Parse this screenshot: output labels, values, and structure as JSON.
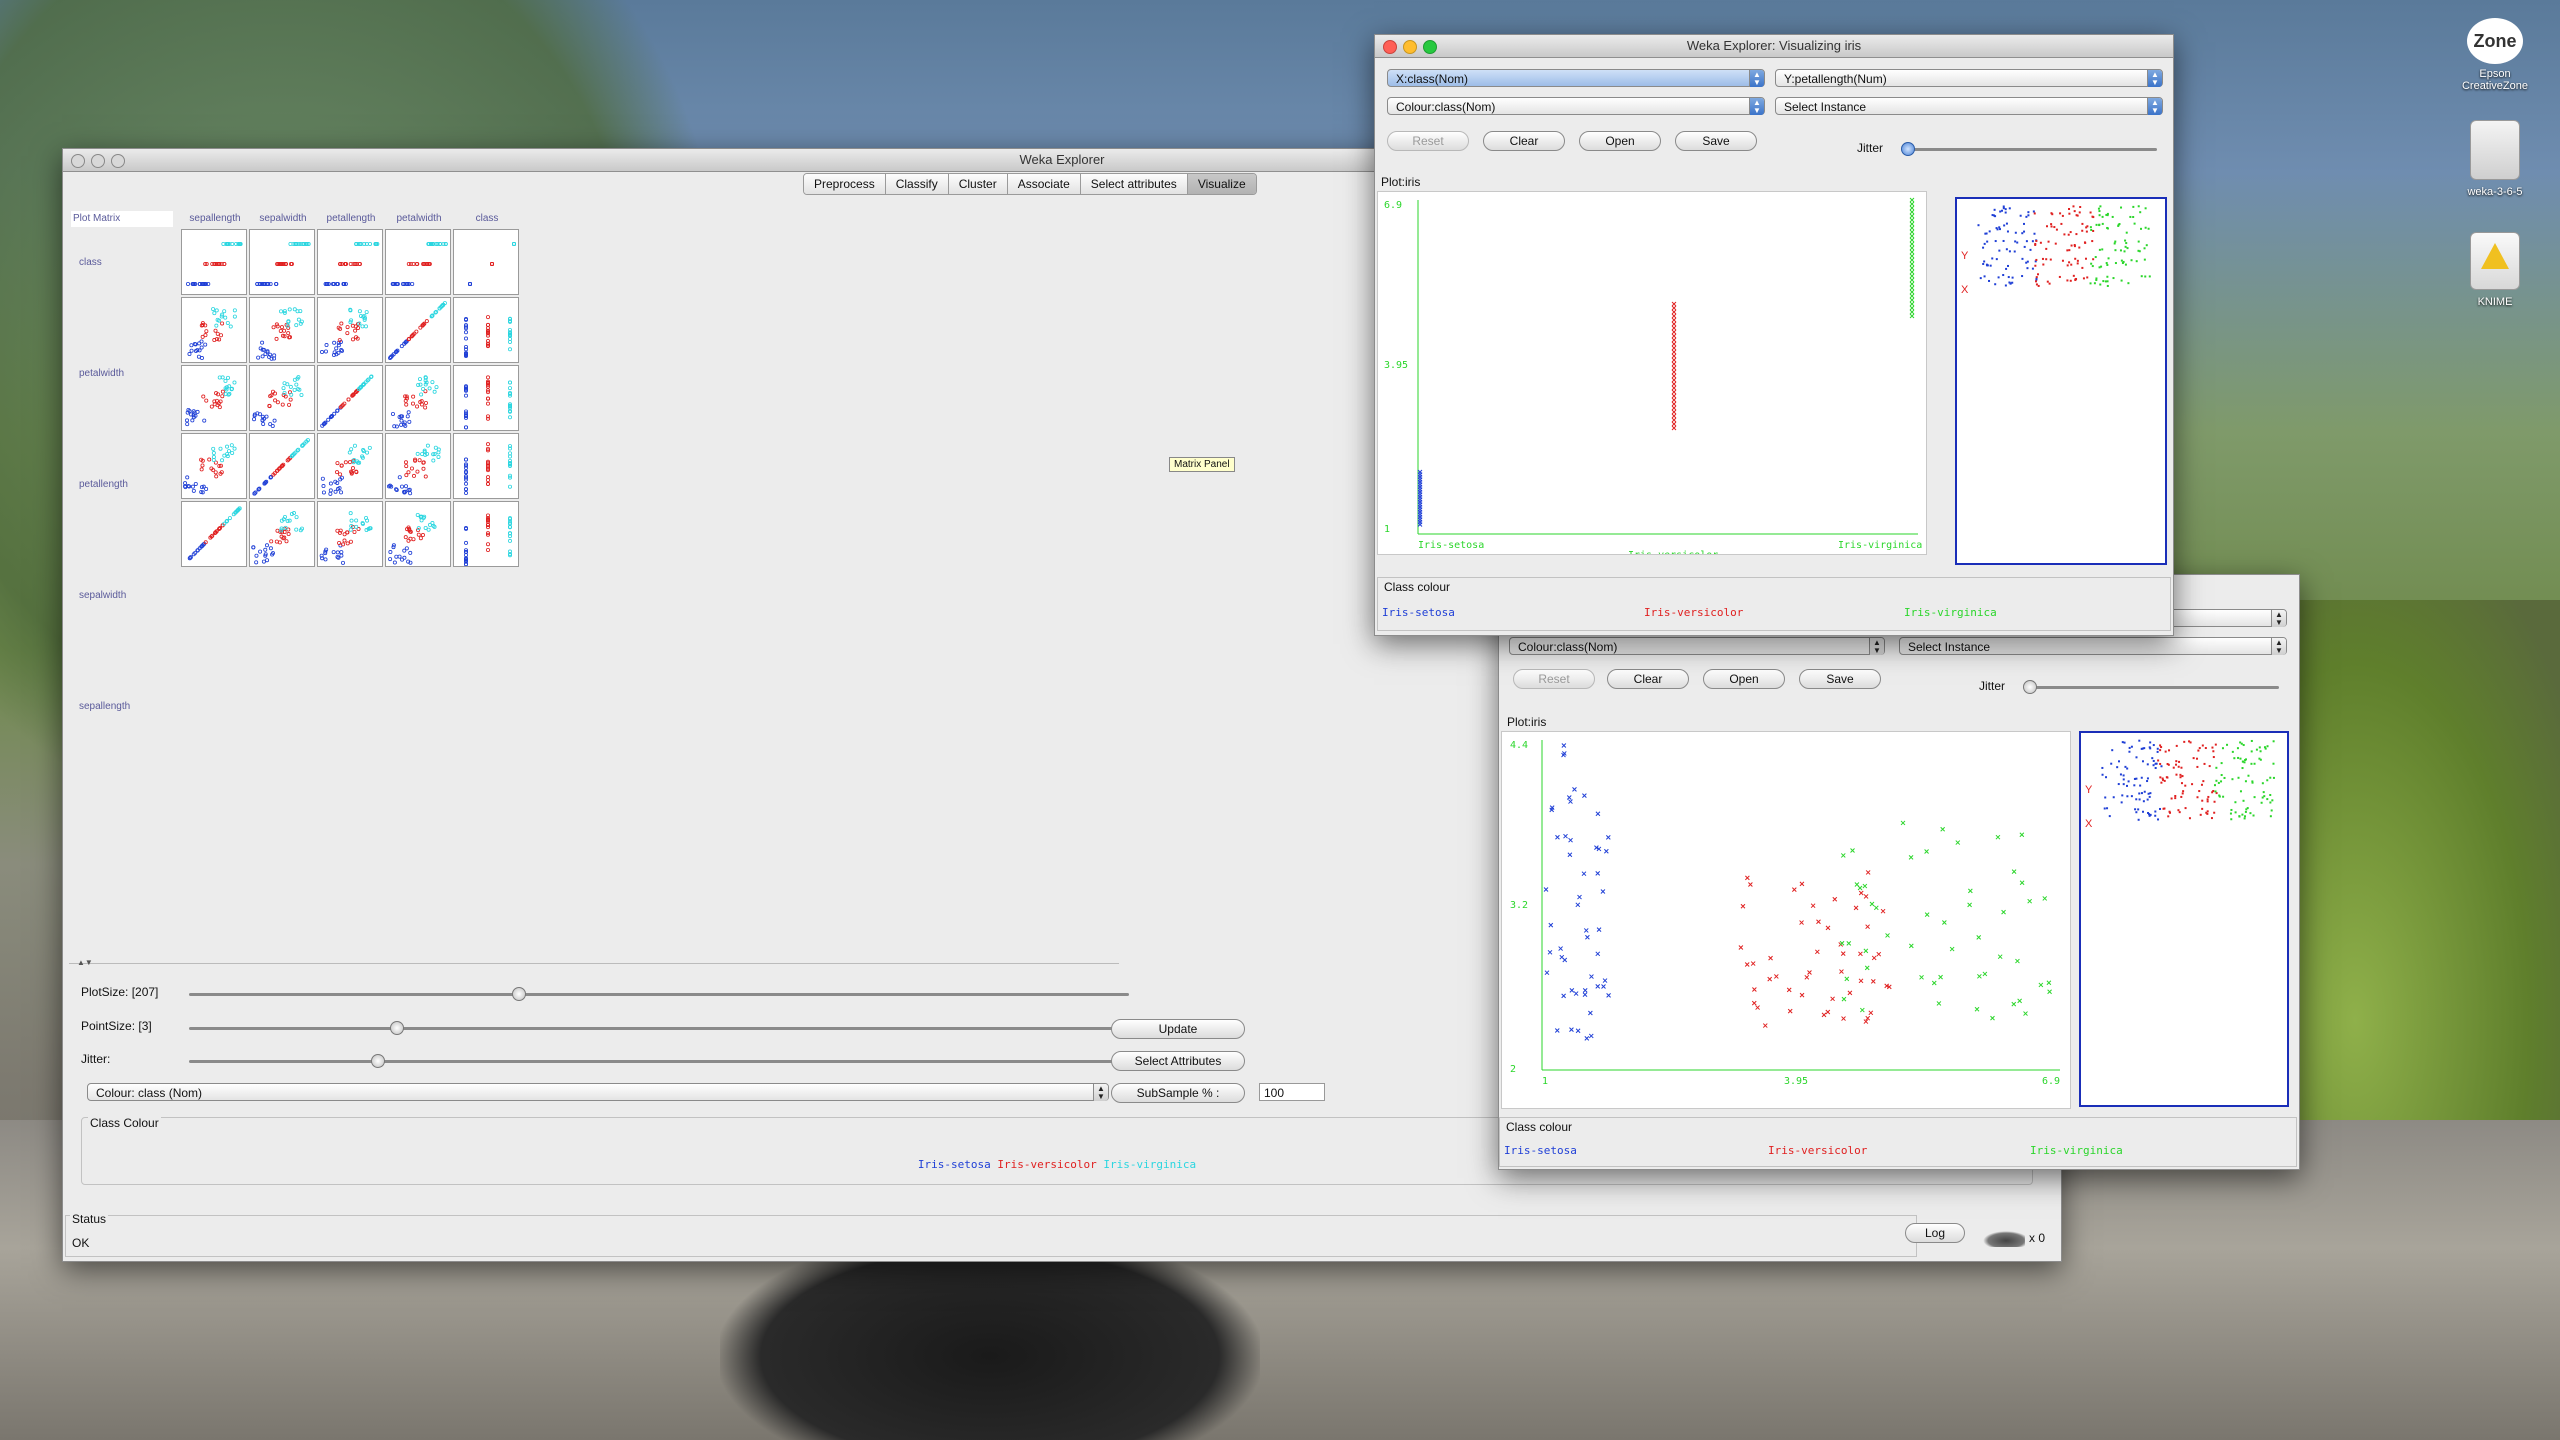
{
  "desktop": {
    "icons": [
      {
        "id": "epson",
        "label": "Epson CreativeZone",
        "badge": "Zone"
      },
      {
        "id": "weka",
        "label": "weka-3-6-5"
      },
      {
        "id": "knime",
        "label": "KNIME"
      }
    ]
  },
  "main_window": {
    "title": "Weka Explorer",
    "tabs": [
      "Preprocess",
      "Classify",
      "Cluster",
      "Associate",
      "Select attributes",
      "Visualize"
    ],
    "active_tab": "Visualize",
    "matrix_header": "Plot Matrix",
    "columns": [
      "sepallength",
      "sepalwidth",
      "petallength",
      "petalwidth",
      "class"
    ],
    "rows": [
      "class",
      "petalwidth",
      "petallength",
      "sepalwidth",
      "sepallength"
    ],
    "tooltip": "Matrix Panel",
    "controls": {
      "plotsize_label": "PlotSize: [207]",
      "plotsize_value": 0.35,
      "pointsize_label": "PointSize: [3]",
      "pointsize_value": 0.22,
      "jitter_label": "Jitter:",
      "jitter_value": 0.2,
      "colour_combo": "Colour: class (Nom)",
      "update_button": "Update",
      "select_attributes_button": "Select Attributes",
      "subsample_label": "SubSample % :",
      "subsample_value": "100"
    },
    "class_colour_title": "Class Colour",
    "class_legend": [
      {
        "name": "Iris-setosa",
        "color": "#1f3fd6"
      },
      {
        "name": "Iris-versicolor",
        "color": "#e02020"
      },
      {
        "name": "Iris-virginica",
        "color": "#2bd6e0"
      }
    ],
    "status_title": "Status",
    "status_text": "OK",
    "log_button": "Log",
    "task_count": "x 0"
  },
  "viz_window_1": {
    "title": "Weka Explorer: Visualizing iris",
    "x_combo": "X:class(Nom)",
    "y_combo": "Y:petallength(Num)",
    "colour_combo": "Colour:class(Nom)",
    "instance_combo": "Select Instance",
    "buttons": {
      "reset": "Reset",
      "clear": "Clear",
      "open": "Open",
      "save": "Save"
    },
    "jitter_label": "Jitter",
    "plot_title": "Plot:iris",
    "y_ticks": [
      "6.9",
      "3.95",
      "1"
    ],
    "x_ticks": [
      "Iris-setosa",
      "Iris-versicolor",
      "Iris-virginica"
    ],
    "class_colour_title": "Class colour",
    "legend": [
      {
        "name": "Iris-setosa",
        "color": "#1f3fd6"
      },
      {
        "name": "Iris-versicolor",
        "color": "#e02020"
      },
      {
        "name": "Iris-virginica",
        "color": "#2bd62b"
      }
    ],
    "strip_labels": {
      "y": "Y",
      "x": "X"
    }
  },
  "viz_window_2": {
    "colour_combo": "Colour:class(Nom)",
    "instance_combo": "Select Instance",
    "buttons": {
      "reset": "Reset",
      "clear": "Clear",
      "open": "Open",
      "save": "Save"
    },
    "jitter_label": "Jitter",
    "plot_title": "Plot:iris",
    "y_ticks": [
      "4.4",
      "3.2",
      "2"
    ],
    "x_ticks": [
      "1",
      "3.95",
      "6.9"
    ],
    "class_colour_title": "Class colour",
    "legend": [
      {
        "name": "Iris-setosa",
        "color": "#1f3fd6"
      },
      {
        "name": "Iris-versicolor",
        "color": "#e02020"
      },
      {
        "name": "Iris-virginica",
        "color": "#2bd62b"
      }
    ],
    "strip_labels": {
      "y": "Y",
      "x": "X"
    }
  }
}
